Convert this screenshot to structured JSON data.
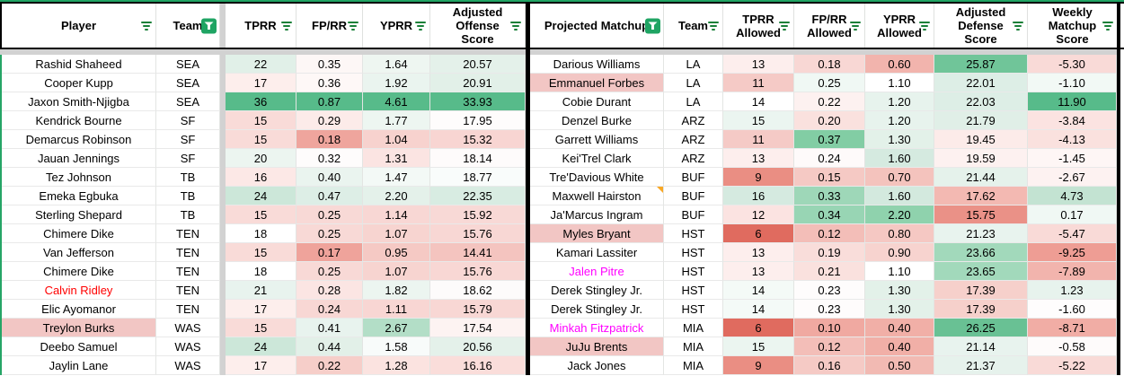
{
  "header": {
    "left": [
      {
        "label": "Player",
        "icon": "filter"
      },
      {
        "label": "Team",
        "icon": "funnel"
      },
      {
        "label": "TPRR",
        "icon": "filter"
      },
      {
        "label": "FP/RR",
        "icon": "filter"
      },
      {
        "label": "YPRR",
        "icon": "filter"
      },
      {
        "label": "Adjusted Offense Score",
        "icon": "filter"
      }
    ],
    "right": [
      {
        "label": "Projected Matchup",
        "icon": "funnel"
      },
      {
        "label": "Team",
        "icon": "filter"
      },
      {
        "label": "TPRR Allowed",
        "icon": "filter"
      },
      {
        "label": "FP/RR Allowed",
        "icon": "filter"
      },
      {
        "label": "YPRR Allowed",
        "icon": "filter"
      },
      {
        "label": "Adjusted Defense Score",
        "icon": "filter"
      },
      {
        "label": "Weekly Matchup Score",
        "icon": "filter"
      }
    ]
  },
  "colors": {
    "accent_green": "#21a464",
    "filter_icon_green": "#188038",
    "funnel_box_green": "#1fa463",
    "scale_high_green": "#57bb8a",
    "scale_low_red": "#e06b5f",
    "flag_name_bg": "#f2c6c4",
    "alert_text_red": "#ff0000",
    "alert_text_magenta": "#ff00ff",
    "note_marker_orange": "#f9a825"
  },
  "rows": [
    {
      "left": {
        "player": "Rashid Shaheed",
        "team": "SEA",
        "name_color": "",
        "name_bg": "",
        "cells": [
          [
            "22",
            "#e1f0e8"
          ],
          [
            "0.35",
            "#fdf7f6"
          ],
          [
            "1.64",
            "#eef6f1"
          ],
          [
            "20.57",
            "#e4f1ea"
          ]
        ]
      },
      "right": {
        "matchup": "Darious Williams",
        "team": "LA",
        "name_color": "",
        "name_bg": "",
        "note": false,
        "cells": [
          [
            "13",
            "#fdeeed"
          ],
          [
            "0.18",
            "#f8d7d4"
          ],
          [
            "0.60",
            "#f2b4ad"
          ],
          [
            "25.87",
            "#70c599"
          ],
          [
            "-5.30",
            "#f9dad7"
          ]
        ]
      }
    },
    {
      "left": {
        "player": "Cooper Kupp",
        "team": "SEA",
        "name_color": "",
        "name_bg": "",
        "cells": [
          [
            "17",
            "#fdeeec"
          ],
          [
            "0.36",
            "#fef8f7"
          ],
          [
            "1.92",
            "#eaf4ef"
          ],
          [
            "20.91",
            "#e2f0e8"
          ]
        ]
      },
      "right": {
        "matchup": "Emmanuel Forbes",
        "team": "LA",
        "name_color": "",
        "name_bg": "#f2c6c4",
        "note": false,
        "cells": [
          [
            "11",
            "#f5cac6"
          ],
          [
            "0.25",
            "#f0f8f4"
          ],
          [
            "1.10",
            "#ffffff"
          ],
          [
            "22.01",
            "#ddeee6"
          ],
          [
            "-1.10",
            "#f2f9f5"
          ]
        ]
      }
    },
    {
      "left": {
        "player": "Jaxon Smith-Njigba",
        "team": "SEA",
        "name_color": "",
        "name_bg": "",
        "cells": [
          [
            "36",
            "#57bb8a"
          ],
          [
            "0.87",
            "#57bb8a"
          ],
          [
            "4.61",
            "#57bb8a"
          ],
          [
            "33.93",
            "#57bb8a"
          ]
        ]
      },
      "right": {
        "matchup": "Cobie Durant",
        "team": "LA",
        "name_color": "",
        "name_bg": "",
        "note": false,
        "cells": [
          [
            "14",
            "#ffffff"
          ],
          [
            "0.22",
            "#fdf1f0"
          ],
          [
            "1.20",
            "#e7f3ed"
          ],
          [
            "22.03",
            "#ddeee6"
          ],
          [
            "11.90",
            "#57bb8a"
          ]
        ]
      }
    },
    {
      "left": {
        "player": "Kendrick Bourne",
        "team": "SF",
        "name_color": "",
        "name_bg": "",
        "cells": [
          [
            "15",
            "#f9dbd8"
          ],
          [
            "0.29",
            "#fcebe9"
          ],
          [
            "1.77",
            "#edf6f1"
          ],
          [
            "17.95",
            "#fefcfc"
          ]
        ]
      },
      "right": {
        "matchup": "Denzel Burke",
        "team": "ARZ",
        "name_color": "",
        "name_bg": "",
        "note": false,
        "cells": [
          [
            "15",
            "#ebf5f0"
          ],
          [
            "0.20",
            "#fae1de"
          ],
          [
            "1.20",
            "#e7f3ed"
          ],
          [
            "21.79",
            "#e0efe7"
          ],
          [
            "-3.84",
            "#fbe3e1"
          ]
        ]
      }
    },
    {
      "left": {
        "player": "Demarcus Robinson",
        "team": "SF",
        "name_color": "",
        "name_bg": "",
        "cells": [
          [
            "15",
            "#f9dbd8"
          ],
          [
            "0.18",
            "#efa59d"
          ],
          [
            "1.04",
            "#f7d2ce"
          ],
          [
            "15.32",
            "#f8d5d2"
          ]
        ]
      },
      "right": {
        "matchup": "Garrett Williams",
        "team": "ARZ",
        "name_color": "",
        "name_bg": "",
        "note": false,
        "cells": [
          [
            "11",
            "#f5cac6"
          ],
          [
            "0.37",
            "#82cda4"
          ],
          [
            "1.30",
            "#e3f1e9"
          ],
          [
            "19.45",
            "#fcebe9"
          ],
          [
            "-4.13",
            "#fae1de"
          ]
        ]
      }
    },
    {
      "left": {
        "player": "Jauan Jennings",
        "team": "SF",
        "name_color": "",
        "name_bg": "",
        "cells": [
          [
            "20",
            "#ecf5f0"
          ],
          [
            "0.32",
            "#fefcfc"
          ],
          [
            "1.31",
            "#fbe4e2"
          ],
          [
            "18.14",
            "#fefbfb"
          ]
        ]
      },
      "right": {
        "matchup": "Kei'Trel Clark",
        "team": "ARZ",
        "name_color": "",
        "name_bg": "",
        "note": false,
        "cells": [
          [
            "13",
            "#fdeeed"
          ],
          [
            "0.24",
            "#fefafa"
          ],
          [
            "1.60",
            "#d5eae0"
          ],
          [
            "19.59",
            "#fdf1f0"
          ],
          [
            "-1.45",
            "#fef6f5"
          ]
        ]
      }
    },
    {
      "left": {
        "player": "Tez Johnson",
        "team": "TB",
        "name_color": "",
        "name_bg": "",
        "cells": [
          [
            "16",
            "#fce8e6"
          ],
          [
            "0.40",
            "#eaf4ef"
          ],
          [
            "1.47",
            "#f3f9f6"
          ],
          [
            "18.77",
            "#f9fcfb"
          ]
        ]
      },
      "right": {
        "matchup": "Tre'Davious White",
        "team": "BUF",
        "name_color": "",
        "name_bg": "",
        "note": false,
        "cells": [
          [
            "9",
            "#ea8e83"
          ],
          [
            "0.15",
            "#f5c9c4"
          ],
          [
            "0.70",
            "#f4c3bd"
          ],
          [
            "21.44",
            "#e5f2eb"
          ],
          [
            "-2.67",
            "#fdf2f1"
          ]
        ]
      }
    },
    {
      "left": {
        "player": "Emeka Egbuka",
        "team": "TB",
        "name_color": "",
        "name_bg": "",
        "cells": [
          [
            "24",
            "#cce7d9"
          ],
          [
            "0.47",
            "#ddeee6"
          ],
          [
            "2.20",
            "#e4f1ea"
          ],
          [
            "22.35",
            "#d8ece2"
          ]
        ]
      },
      "right": {
        "matchup": "Maxwell Hairston",
        "team": "BUF",
        "name_color": "",
        "name_bg": "",
        "note": true,
        "cells": [
          [
            "16",
            "#d5eae0"
          ],
          [
            "0.33",
            "#9ed7b8"
          ],
          [
            "1.60",
            "#d3e9de"
          ],
          [
            "17.62",
            "#f3b9b2"
          ],
          [
            "4.73",
            "#c3e3d2"
          ]
        ]
      }
    },
    {
      "left": {
        "player": "Sterling Shepard",
        "team": "TB",
        "name_color": "",
        "name_bg": "",
        "cells": [
          [
            "15",
            "#f9dbd8"
          ],
          [
            "0.25",
            "#f8d9d6"
          ],
          [
            "1.14",
            "#f8d7d4"
          ],
          [
            "15.92",
            "#f8d9d6"
          ]
        ]
      },
      "right": {
        "matchup": "Ja'Marcus Ingram",
        "team": "BUF",
        "name_color": "",
        "name_bg": "",
        "note": false,
        "cells": [
          [
            "12",
            "#fbe3e1"
          ],
          [
            "0.34",
            "#98d5b4"
          ],
          [
            "2.20",
            "#8fd2ad"
          ],
          [
            "15.75",
            "#ea9187"
          ],
          [
            "0.17",
            "#f0f8f4"
          ]
        ]
      }
    },
    {
      "left": {
        "player": "Chimere Dike",
        "team": "TEN",
        "name_color": "",
        "name_bg": "",
        "cells": [
          [
            "18",
            "#ffffff"
          ],
          [
            "0.25",
            "#f8d9d6"
          ],
          [
            "1.07",
            "#f7d4d0"
          ],
          [
            "15.76",
            "#f8d7d4"
          ]
        ]
      },
      "right": {
        "matchup": "Myles Bryant",
        "team": "HST",
        "name_color": "",
        "name_bg": "#f2c6c4",
        "note": false,
        "cells": [
          [
            "6",
            "#e06b5f"
          ],
          [
            "0.12",
            "#f3beb8"
          ],
          [
            "0.80",
            "#f5c8c3"
          ],
          [
            "21.23",
            "#e8f3ee"
          ],
          [
            "-5.47",
            "#f9dad7"
          ]
        ]
      }
    },
    {
      "left": {
        "player": "Van Jefferson",
        "team": "TEN",
        "name_color": "",
        "name_bg": "",
        "cells": [
          [
            "15",
            "#f9dbd8"
          ],
          [
            "0.17",
            "#efa39b"
          ],
          [
            "0.95",
            "#f5c9c4"
          ],
          [
            "14.41",
            "#f4c4bf"
          ]
        ]
      },
      "right": {
        "matchup": "Kamari Lassiter",
        "team": "HST",
        "name_color": "",
        "name_bg": "",
        "note": false,
        "cells": [
          [
            "13",
            "#fdeeed"
          ],
          [
            "0.19",
            "#f9ddda"
          ],
          [
            "0.90",
            "#f7d3cf"
          ],
          [
            "23.66",
            "#a2d9bb"
          ],
          [
            "-9.25",
            "#ee9d94"
          ]
        ]
      }
    },
    {
      "left": {
        "player": "Chimere Dike",
        "team": "TEN",
        "name_color": "",
        "name_bg": "",
        "cells": [
          [
            "18",
            "#ffffff"
          ],
          [
            "0.25",
            "#f8d9d6"
          ],
          [
            "1.07",
            "#f7d4d0"
          ],
          [
            "15.76",
            "#f8d7d4"
          ]
        ]
      },
      "right": {
        "matchup": "Jalen Pitre",
        "team": "HST",
        "name_color": "#ff00ff",
        "name_bg": "",
        "note": false,
        "cells": [
          [
            "13",
            "#fdeeed"
          ],
          [
            "0.21",
            "#fae1de"
          ],
          [
            "1.10",
            "#ffffff"
          ],
          [
            "23.65",
            "#a2d9bb"
          ],
          [
            "-7.89",
            "#f2b4ad"
          ]
        ]
      }
    },
    {
      "left": {
        "player": "Calvin Ridley",
        "team": "TEN",
        "name_color": "#ff0000",
        "name_bg": "",
        "cells": [
          [
            "21",
            "#e8f3ee"
          ],
          [
            "0.28",
            "#fbe5e3"
          ],
          [
            "1.82",
            "#ecf5f0"
          ],
          [
            "18.62",
            "#fdfbfb"
          ]
        ]
      },
      "right": {
        "matchup": "Derek Stingley Jr.",
        "team": "HST",
        "name_color": "",
        "name_bg": "",
        "note": false,
        "cells": [
          [
            "14",
            "#f4faf7"
          ],
          [
            "0.23",
            "#fefcfc"
          ],
          [
            "1.30",
            "#e3f1e9"
          ],
          [
            "17.39",
            "#f6d0cb"
          ],
          [
            "1.23",
            "#e7f3ed"
          ]
        ]
      }
    },
    {
      "left": {
        "player": "Elic Ayomanor",
        "team": "TEN",
        "name_color": "",
        "name_bg": "",
        "cells": [
          [
            "17",
            "#fdeeec"
          ],
          [
            "0.24",
            "#f8d7d4"
          ],
          [
            "1.11",
            "#f8d6d3"
          ],
          [
            "15.79",
            "#f8d7d4"
          ]
        ]
      },
      "right": {
        "matchup": "Derek Stingley Jr.",
        "team": "HST",
        "name_color": "",
        "name_bg": "",
        "note": false,
        "cells": [
          [
            "14",
            "#f4faf7"
          ],
          [
            "0.23",
            "#fefcfc"
          ],
          [
            "1.30",
            "#e3f1e9"
          ],
          [
            "17.39",
            "#f6d0cb"
          ],
          [
            "-1.60",
            "#fefdfd"
          ]
        ]
      }
    },
    {
      "left": {
        "player": "Treylon Burks",
        "team": "WAS",
        "name_color": "",
        "name_bg": "#f2c6c4",
        "cells": [
          [
            "15",
            "#f9dbd8"
          ],
          [
            "0.41",
            "#e8f3ee"
          ],
          [
            "2.67",
            "#b3dec7"
          ],
          [
            "17.54",
            "#fdf3f2"
          ]
        ]
      },
      "right": {
        "matchup": "Minkah Fitzpatrick",
        "team": "MIA",
        "name_color": "#ff00ff",
        "name_bg": "",
        "note": false,
        "cells": [
          [
            "6",
            "#e06b5f"
          ],
          [
            "0.10",
            "#f0a9a1"
          ],
          [
            "0.40",
            "#f1afa7"
          ],
          [
            "26.25",
            "#69c194"
          ],
          [
            "-8.71",
            "#f1ada5"
          ]
        ]
      }
    },
    {
      "left": {
        "player": "Deebo Samuel",
        "team": "WAS",
        "name_color": "",
        "name_bg": "",
        "cells": [
          [
            "24",
            "#cce7d9"
          ],
          [
            "0.44",
            "#e2f0e8"
          ],
          [
            "1.58",
            "#f8fbfa"
          ],
          [
            "20.56",
            "#e4f1ea"
          ]
        ]
      },
      "right": {
        "matchup": "JuJu Brents",
        "team": "MIA",
        "name_color": "",
        "name_bg": "#f2c6c4",
        "note": false,
        "cells": [
          [
            "15",
            "#ebf5f0"
          ],
          [
            "0.12",
            "#f3beb8"
          ],
          [
            "0.40",
            "#f1afa7"
          ],
          [
            "21.14",
            "#e8f3ee"
          ],
          [
            "-0.58",
            "#fefbfb"
          ]
        ]
      }
    },
    {
      "left": {
        "player": "Jaylin Lane",
        "team": "WAS",
        "name_color": "",
        "name_bg": "",
        "cells": [
          [
            "17",
            "#fdeeec"
          ],
          [
            "0.22",
            "#f6cec9"
          ],
          [
            "1.28",
            "#fbe3e0"
          ],
          [
            "16.16",
            "#faddda"
          ]
        ]
      },
      "right": {
        "matchup": "Jack Jones",
        "team": "MIA",
        "name_color": "",
        "name_bg": "",
        "note": false,
        "cells": [
          [
            "9",
            "#ea8e83"
          ],
          [
            "0.16",
            "#f5cac5"
          ],
          [
            "0.50",
            "#f2bab3"
          ],
          [
            "21.37",
            "#e6f2ec"
          ],
          [
            "-5.22",
            "#f9dad7"
          ]
        ]
      }
    }
  ]
}
